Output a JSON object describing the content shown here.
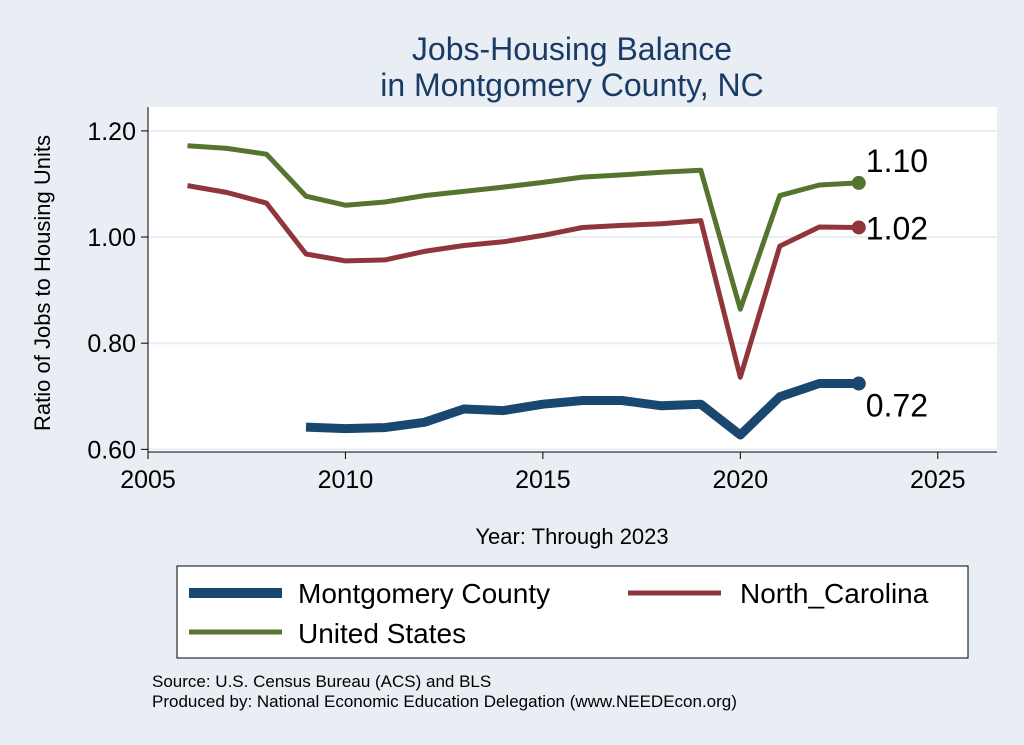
{
  "chart_data": {
    "type": "line",
    "title": [
      "Jobs-Housing Balance",
      "in Montgomery County, NC"
    ],
    "xlabel": "Year: Through 2023",
    "ylabel": "Ratio of Jobs to Housing Units",
    "xlim": [
      2005,
      2026.5
    ],
    "ylim": [
      0.595,
      1.245
    ],
    "xticks": [
      2005,
      2010,
      2015,
      2020,
      2025
    ],
    "yticks": [
      0.6,
      0.8,
      1.0,
      1.2
    ],
    "ytick_labels": [
      "0.60",
      "0.80",
      "1.00",
      "1.20"
    ],
    "grid": true,
    "legend_position": "bottom",
    "series": [
      {
        "name": "Montgomery County",
        "color": "#1a476f",
        "x": [
          2009,
          2010,
          2011,
          2012,
          2013,
          2014,
          2015,
          2016,
          2017,
          2018,
          2019,
          2020,
          2021,
          2022,
          2023
        ],
        "values": [
          0.642,
          0.639,
          0.641,
          0.651,
          0.676,
          0.673,
          0.685,
          0.692,
          0.692,
          0.682,
          0.685,
          0.627,
          0.699,
          0.724,
          0.724
        ],
        "end_label": "0.72"
      },
      {
        "name": "North_Carolina",
        "color": "#90353b",
        "x": [
          2006,
          2007,
          2008,
          2009,
          2010,
          2011,
          2012,
          2013,
          2014,
          2015,
          2016,
          2017,
          2018,
          2019,
          2020,
          2021,
          2022,
          2023
        ],
        "values": [
          1.097,
          1.084,
          1.064,
          0.968,
          0.955,
          0.957,
          0.973,
          0.984,
          0.991,
          1.003,
          1.018,
          1.022,
          1.025,
          1.031,
          0.736,
          0.983,
          1.019,
          1.018
        ],
        "end_label": "1.02"
      },
      {
        "name": "United States",
        "color": "#55752f",
        "x": [
          2006,
          2007,
          2008,
          2009,
          2010,
          2011,
          2012,
          2013,
          2014,
          2015,
          2016,
          2017,
          2018,
          2019,
          2020,
          2021,
          2022,
          2023
        ],
        "values": [
          1.172,
          1.167,
          1.156,
          1.077,
          1.06,
          1.066,
          1.078,
          1.086,
          1.094,
          1.103,
          1.113,
          1.117,
          1.122,
          1.126,
          0.864,
          1.078,
          1.098,
          1.102
        ],
        "end_label": "1.10"
      }
    ],
    "source_lines": [
      "Source: U.S. Census Bureau (ACS) and BLS",
      "Produced by: National Economic Education Delegation (www.NEEDEcon.org)"
    ]
  }
}
